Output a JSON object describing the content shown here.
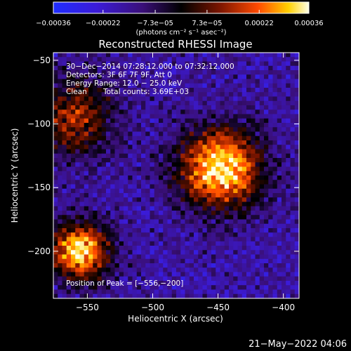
{
  "chart_data": {
    "type": "heatmap",
    "title": "Reconstructed RHESSI Image",
    "xlabel": "Heliocentric X (arcsec)",
    "ylabel": "Heliocentric Y (arcsec)",
    "xlim": [
      -576,
      -388
    ],
    "ylim": [
      -237,
      -44
    ],
    "xticks": [
      -550,
      -500,
      -450,
      -400
    ],
    "yticks": [
      -50,
      -100,
      -150,
      -200
    ],
    "xtick_labels": [
      "−550",
      "−500",
      "−450",
      "−400"
    ],
    "ytick_labels": [
      "−50",
      "−100",
      "−150",
      "−200"
    ],
    "colorbar": {
      "range": [
        -0.00036,
        0.00036
      ],
      "ticks": [
        -0.00036,
        -0.00022,
        -7.3e-05,
        7.3e-05,
        0.00022,
        0.00036
      ],
      "tick_labels": [
        "−0.00036",
        "−0.00022",
        "−7.3e−05",
        "7.3e−05",
        "0.00022",
        "0.00036"
      ],
      "units_label": "(photons cm⁻² s⁻¹ asec⁻²)"
    },
    "annotations": {
      "time_range": "30−Dec−2014 07:28:12.000 to 07:32:12.000",
      "detectors": "Detectors: 3F 6F 7F 9F, Att 0",
      "energy_range": "Energy Range: 12.0 − 25.0 keV",
      "method": "Clean",
      "total_counts": "Total counts: 3.69E+03",
      "peak_position": "Position of Peak = [−556,−200]"
    },
    "footer_timestamp": "21−May−2022 04:06",
    "sources": [
      {
        "x": -448,
        "y": -135,
        "intensity": 1.0,
        "spread": 22
      },
      {
        "x": -556,
        "y": -200,
        "intensity": 0.95,
        "spread": 16
      },
      {
        "x": -560,
        "y": -95,
        "intensity": 0.55,
        "spread": 22
      }
    ]
  }
}
